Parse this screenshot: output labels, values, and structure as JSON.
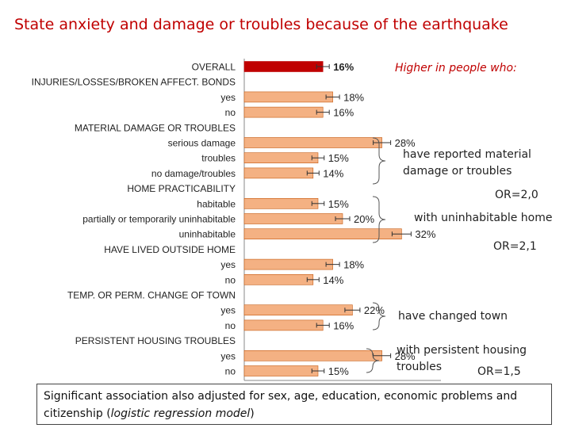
{
  "title": "State anxiety and damage or troubles because of the  earthquake",
  "chart_data": {
    "type": "bar",
    "orientation": "horizontal",
    "xlim": [
      0,
      40
    ],
    "colors": {
      "overall": "#c00000",
      "bar": "#f4b183",
      "bar_edge": "#c55a11"
    },
    "rows": [
      {
        "label": "OVERALL",
        "kind": "overall",
        "value": 16,
        "value_label": "16%"
      },
      {
        "label": "INJURIES/LOSSES/BROKEN AFFECT. BONDS",
        "kind": "header"
      },
      {
        "label": "yes",
        "kind": "bar",
        "value": 18,
        "value_label": "18%"
      },
      {
        "label": "no",
        "kind": "bar",
        "value": 16,
        "value_label": "16%"
      },
      {
        "label": "MATERIAL DAMAGE OR TROUBLES",
        "kind": "header"
      },
      {
        "label": "serious damage",
        "kind": "bar",
        "value": 28,
        "value_label": "28%"
      },
      {
        "label": "troubles",
        "kind": "bar",
        "value": 15,
        "value_label": "15%"
      },
      {
        "label": "no damage/troubles",
        "kind": "bar",
        "value": 14,
        "value_label": "14%"
      },
      {
        "label": "HOME PRACTICABILITY",
        "kind": "header"
      },
      {
        "label": "habitable",
        "kind": "bar",
        "value": 15,
        "value_label": "15%"
      },
      {
        "label": "partially or temporarily uninhabitable",
        "kind": "bar",
        "value": 20,
        "value_label": "20%"
      },
      {
        "label": "uninhabitable",
        "kind": "bar",
        "value": 32,
        "value_label": "32%"
      },
      {
        "label": "HAVE LIVED OUTSIDE HOME",
        "kind": "header"
      },
      {
        "label": "yes",
        "kind": "bar",
        "value": 18,
        "value_label": "18%"
      },
      {
        "label": "no",
        "kind": "bar",
        "value": 14,
        "value_label": "14%"
      },
      {
        "label": "TEMP. OR PERM. CHANGE OF TOWN",
        "kind": "header"
      },
      {
        "label": "yes",
        "kind": "bar",
        "value": 22,
        "value_label": "22%"
      },
      {
        "label": "no",
        "kind": "bar",
        "value": 16,
        "value_label": "16%"
      },
      {
        "label": "PERSISTENT HOUSING TROUBLES",
        "kind": "header"
      },
      {
        "label": "yes",
        "kind": "bar",
        "value": 28,
        "value_label": "28%"
      },
      {
        "label": "no",
        "kind": "bar",
        "value": 15,
        "value_label": "15%"
      }
    ]
  },
  "annotations": {
    "higher_in": "Higher in people who:",
    "material_line1": "have reported  material",
    "material_line2": "damage or troubles",
    "or_material": "OR=2,0",
    "uninhabitable": "with uninhabitable home",
    "or_uninhabitable": "OR=2,1",
    "changed_town": "have changed town",
    "housing_line1": "with persistent housing",
    "housing_line2": "troubles",
    "or_housing": "OR=1,5"
  },
  "footnote": {
    "line1": "Significant association also adjusted for sex, age, education, economic problems and",
    "line2_prefix": "citizenship (",
    "line2_italic": "logistic regression model",
    "line2_suffix": ")"
  }
}
